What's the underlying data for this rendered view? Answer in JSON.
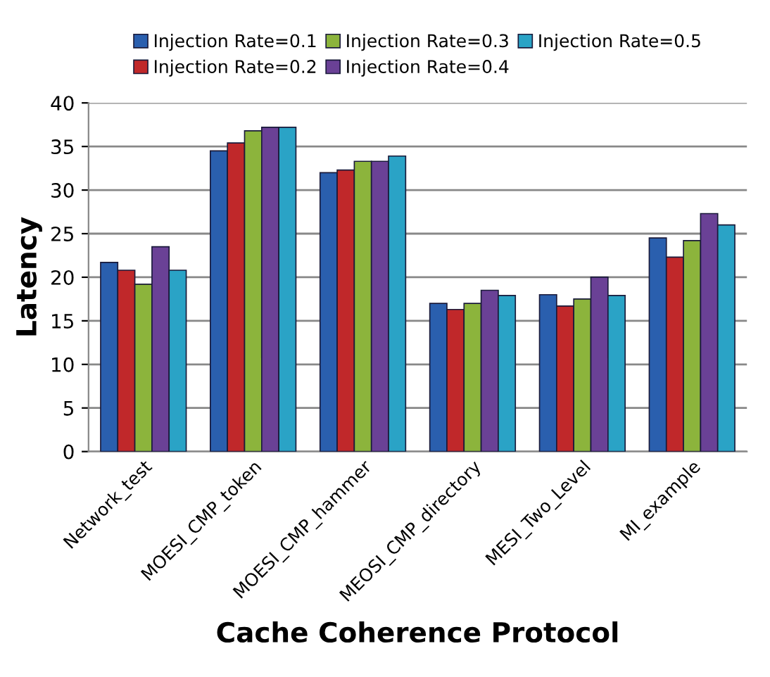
{
  "chart_data": {
    "type": "bar",
    "xlabel": "Cache Coherence Protocol",
    "ylabel": "Latency",
    "categories": [
      "Network_test",
      "MOESI_CMP_token",
      "MOESI_CMP_hammer",
      "MEOSI_CMP_directory",
      "MESI_Two_Level",
      "MI_example"
    ],
    "series": [
      {
        "name": "Injection Rate=0.1",
        "color": "#2a5fae",
        "values": [
          21.7,
          34.5,
          32.0,
          17.0,
          18.0,
          24.5
        ]
      },
      {
        "name": "Injection Rate=0.2",
        "color": "#c0282a",
        "values": [
          20.8,
          35.4,
          32.3,
          16.3,
          16.7,
          22.3
        ]
      },
      {
        "name": "Injection Rate=0.3",
        "color": "#8cb43c",
        "values": [
          19.2,
          36.8,
          33.3,
          17.0,
          17.5,
          24.2
        ]
      },
      {
        "name": "Injection Rate=0.4",
        "color": "#6a4196",
        "values": [
          23.5,
          37.2,
          33.3,
          18.5,
          20.0,
          27.3
        ]
      },
      {
        "name": "Injection Rate=0.5",
        "color": "#2aa3c6",
        "values": [
          20.8,
          37.2,
          33.9,
          17.9,
          17.9,
          26.0
        ]
      }
    ],
    "ylim": [
      0,
      40
    ],
    "yticks": [
      0,
      5,
      10,
      15,
      20,
      25,
      30,
      35,
      40
    ],
    "grid": "y",
    "legend": "top"
  }
}
